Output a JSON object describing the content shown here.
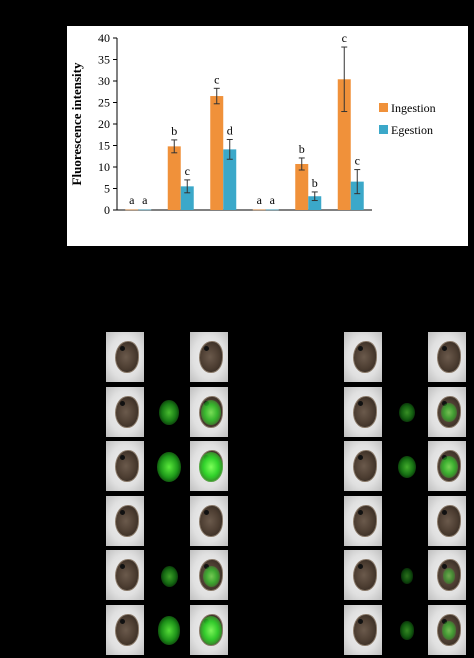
{
  "chart_data": {
    "type": "bar",
    "ylabel": "Fluorescence intensity",
    "ylim": [
      0,
      40
    ],
    "yticks": [
      "0",
      "5",
      "10",
      "15",
      "20",
      "25",
      "30",
      "35",
      "40"
    ],
    "series": [
      {
        "name": "Ingestion",
        "color": "#f0913a",
        "values": [
          0.1,
          14.8,
          26.5,
          0.1,
          10.7,
          30.4
        ],
        "errors": [
          0.1,
          1.5,
          1.8,
          0.1,
          1.4,
          7.5
        ],
        "labels": [
          "a",
          "b",
          "c",
          "a",
          "b",
          "c"
        ]
      },
      {
        "name": "Egestion",
        "color": "#3ba8c9",
        "values": [
          0.1,
          5.5,
          14.1,
          0.1,
          3.2,
          6.6
        ],
        "errors": [
          0.1,
          1.5,
          2.3,
          0.1,
          1.0,
          2.8
        ],
        "labels": [
          "a",
          "c",
          "d",
          "a",
          "b",
          "c"
        ]
      }
    ],
    "grid": false,
    "legend_position": "right"
  },
  "micrographs": {
    "left_panel": {
      "rows": [
        {
          "gut_fluorescence": 0.0
        },
        {
          "gut_fluorescence": 0.7
        },
        {
          "gut_fluorescence": 1.0
        },
        {
          "gut_fluorescence": 0.0
        },
        {
          "gut_fluorescence": 0.5
        },
        {
          "gut_fluorescence": 0.9
        }
      ]
    },
    "right_panel": {
      "rows": [
        {
          "gut_fluorescence": 0.0
        },
        {
          "gut_fluorescence": 0.4
        },
        {
          "gut_fluorescence": 0.6
        },
        {
          "gut_fluorescence": 0.0
        },
        {
          "gut_fluorescence": 0.2
        },
        {
          "gut_fluorescence": 0.35
        }
      ]
    }
  }
}
